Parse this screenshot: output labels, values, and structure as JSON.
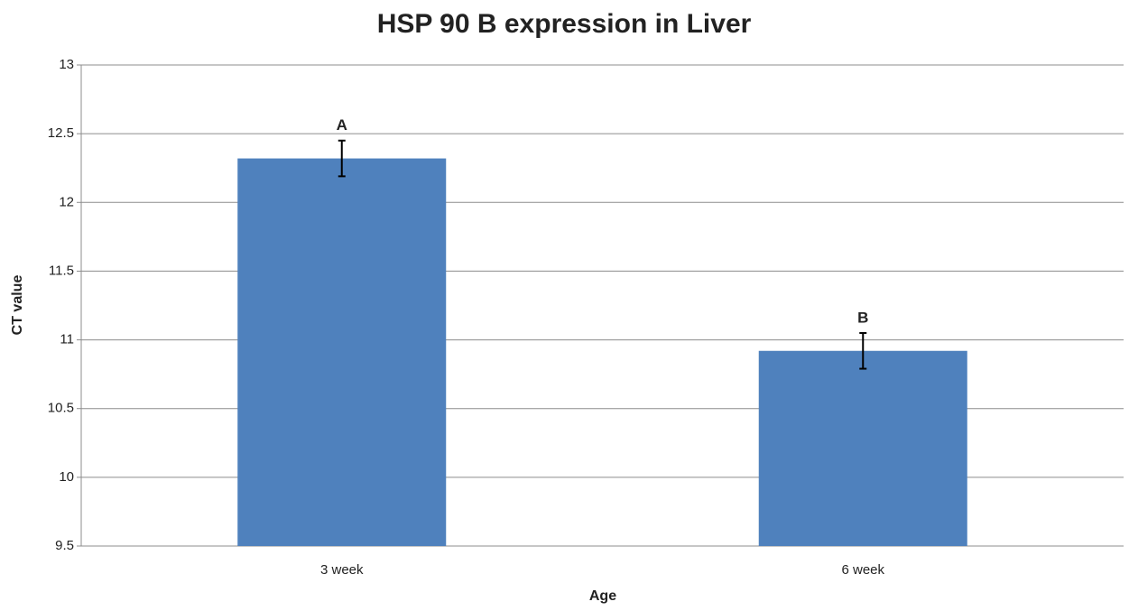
{
  "chart_data": {
    "type": "bar",
    "title": "HSP 90 B expression in Liver",
    "x_label": "Age",
    "y_label": "CT value",
    "categories": [
      "3 week",
      "6 week"
    ],
    "values": [
      12.32,
      10.92
    ],
    "errors": [
      0.13,
      0.13
    ],
    "annotations": [
      "A",
      "B"
    ],
    "color": "#4f81bd",
    "ylim": [
      9.5,
      13
    ],
    "yticks": [
      9.5,
      10,
      10.5,
      11,
      11.5,
      12,
      12.5,
      13
    ],
    "grid": true
  }
}
